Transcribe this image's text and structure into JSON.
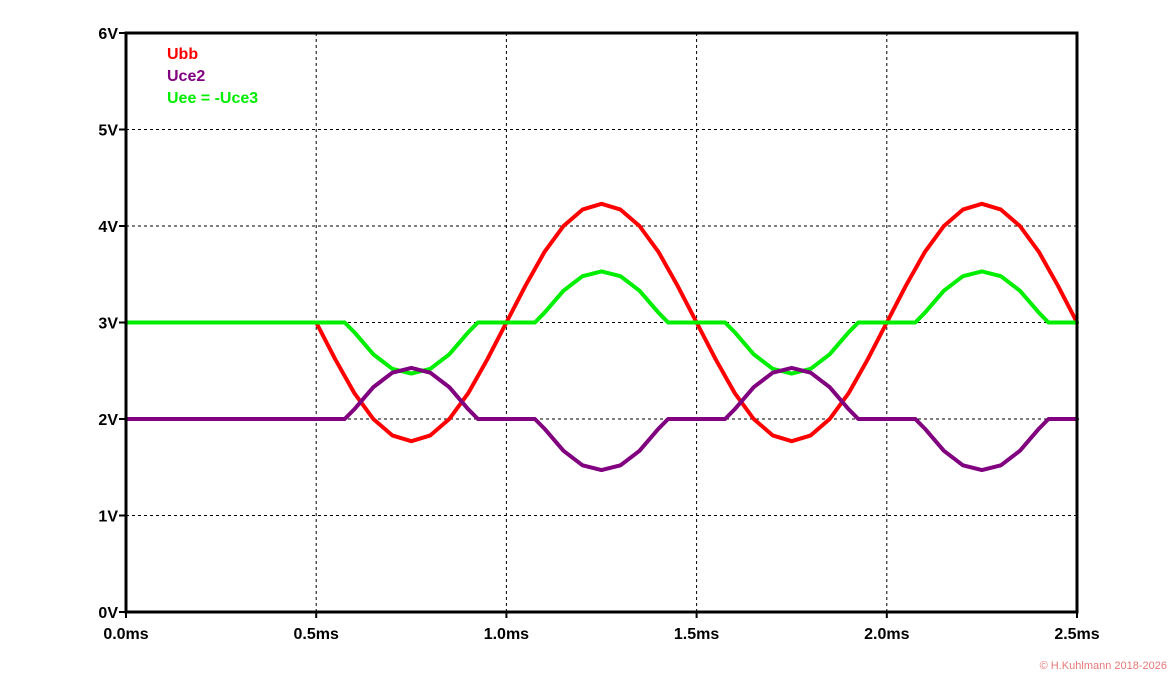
{
  "chart_data": {
    "type": "line",
    "title": "",
    "xlabel": "",
    "ylabel": "",
    "xlim": [
      0,
      2.5
    ],
    "ylim": [
      0,
      6
    ],
    "grid": true,
    "legend_position": "top-left",
    "x_ticks": [
      {
        "value": 0.0,
        "label": "0.0ms"
      },
      {
        "value": 0.5,
        "label": "0.5ms"
      },
      {
        "value": 1.0,
        "label": "1.0ms"
      },
      {
        "value": 1.5,
        "label": "1.5ms"
      },
      {
        "value": 2.0,
        "label": "2.0ms"
      },
      {
        "value": 2.5,
        "label": "2.5ms"
      }
    ],
    "y_ticks": [
      {
        "value": 0,
        "label": "0V"
      },
      {
        "value": 1,
        "label": "1V"
      },
      {
        "value": 2,
        "label": "2V"
      },
      {
        "value": 3,
        "label": "3V"
      },
      {
        "value": 4,
        "label": "4V"
      },
      {
        "value": 5,
        "label": "5V"
      },
      {
        "value": 6,
        "label": "6V"
      }
    ],
    "series": [
      {
        "name": "Ubb",
        "color": "#ff0000",
        "x": [
          0.0,
          0.5,
          0.55,
          0.6,
          0.65,
          0.7,
          0.75,
          0.8,
          0.85,
          0.9,
          0.95,
          1.0,
          1.05,
          1.1,
          1.15,
          1.2,
          1.25,
          1.3,
          1.35,
          1.4,
          1.45,
          1.5,
          1.55,
          1.6,
          1.65,
          1.7,
          1.75,
          1.8,
          1.85,
          1.9,
          1.95,
          2.0,
          2.05,
          2.1,
          2.15,
          2.2,
          2.25,
          2.3,
          2.35,
          2.4,
          2.45,
          2.5
        ],
        "y": [
          3.0,
          3.0,
          2.62,
          2.27,
          2.0,
          1.83,
          1.77,
          1.83,
          2.0,
          2.27,
          2.62,
          3.0,
          3.38,
          3.73,
          4.0,
          4.17,
          4.23,
          4.17,
          4.0,
          3.73,
          3.38,
          3.0,
          2.62,
          2.27,
          2.0,
          1.83,
          1.77,
          1.83,
          2.0,
          2.27,
          2.62,
          3.0,
          3.38,
          3.73,
          4.0,
          4.17,
          4.23,
          4.17,
          4.0,
          3.73,
          3.38,
          3.0
        ]
      },
      {
        "name": "Uce2",
        "color": "#800080",
        "x": [
          0.0,
          0.575,
          0.6,
          0.65,
          0.7,
          0.75,
          0.8,
          0.85,
          0.9,
          0.925,
          1.075,
          1.1,
          1.15,
          1.2,
          1.25,
          1.3,
          1.35,
          1.4,
          1.425,
          1.575,
          1.6,
          1.65,
          1.7,
          1.75,
          1.8,
          1.85,
          1.9,
          1.925,
          2.075,
          2.1,
          2.15,
          2.2,
          2.25,
          2.3,
          2.35,
          2.4,
          2.425,
          2.5
        ],
        "y": [
          2.0,
          2.0,
          2.1,
          2.33,
          2.48,
          2.53,
          2.48,
          2.33,
          2.1,
          2.0,
          2.0,
          1.9,
          1.67,
          1.52,
          1.47,
          1.52,
          1.67,
          1.9,
          2.0,
          2.0,
          2.1,
          2.33,
          2.48,
          2.53,
          2.48,
          2.33,
          2.1,
          2.0,
          2.0,
          1.9,
          1.67,
          1.52,
          1.47,
          1.52,
          1.67,
          1.9,
          2.0,
          2.0
        ]
      },
      {
        "name": "Uee = -Uce3",
        "color": "#00ee00",
        "x": [
          0.0,
          0.575,
          0.6,
          0.65,
          0.7,
          0.75,
          0.8,
          0.85,
          0.9,
          0.925,
          1.075,
          1.1,
          1.15,
          1.2,
          1.25,
          1.3,
          1.35,
          1.4,
          1.425,
          1.575,
          1.6,
          1.65,
          1.7,
          1.75,
          1.8,
          1.85,
          1.9,
          1.925,
          2.075,
          2.1,
          2.15,
          2.2,
          2.25,
          2.3,
          2.35,
          2.4,
          2.425,
          2.5
        ],
        "y": [
          3.0,
          3.0,
          2.9,
          2.67,
          2.52,
          2.47,
          2.52,
          2.67,
          2.9,
          3.0,
          3.0,
          3.1,
          3.33,
          3.48,
          3.53,
          3.48,
          3.33,
          3.1,
          3.0,
          3.0,
          2.9,
          2.67,
          2.52,
          2.47,
          2.52,
          2.67,
          2.9,
          3.0,
          3.0,
          3.1,
          3.33,
          3.48,
          3.53,
          3.48,
          3.33,
          3.1,
          3.0,
          3.0
        ]
      }
    ]
  },
  "footer": {
    "copyright": "© H.Kuhlmann 2018-2026"
  }
}
